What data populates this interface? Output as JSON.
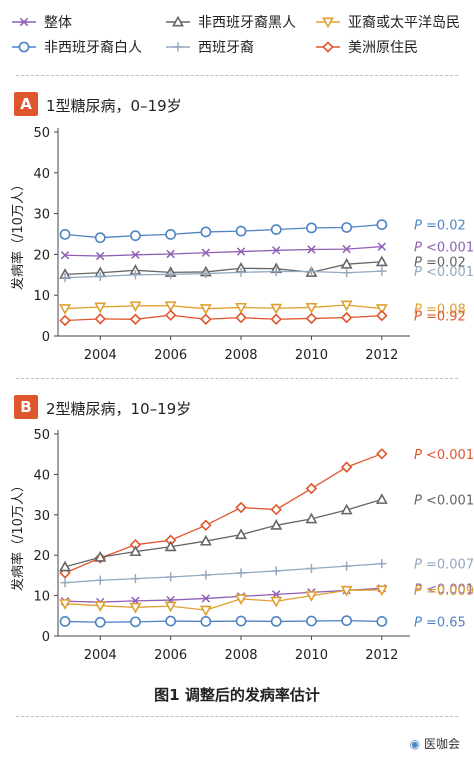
{
  "colors": {
    "overall": "#8e5fb5",
    "nh_white": "#4f84c4",
    "nh_black": "#666666",
    "hispanic": "#93a9c0",
    "asian_pi": "#e0a030",
    "native_american": "#e0562c"
  },
  "legend": [
    {
      "key": "overall",
      "label": "整体",
      "marker": "x"
    },
    {
      "key": "nh_black",
      "label": "非西班牙裔黑人",
      "marker": "triangle-up"
    },
    {
      "key": "asian_pi",
      "label": "亚裔或太平洋岛民",
      "marker": "triangle-down"
    },
    {
      "key": "nh_white",
      "label": "非西班牙裔白人",
      "marker": "circle"
    },
    {
      "key": "hispanic",
      "label": "西班牙裔",
      "marker": "plus"
    },
    {
      "key": "native_american",
      "label": "美洲原住民",
      "marker": "diamond"
    }
  ],
  "caption": "图1 调整后的发病率估计",
  "footer": "医咖会",
  "chart_data": [
    {
      "type": "line",
      "panel": "A",
      "title": "1型糖尿病，0–19岁",
      "ylabel": "发病率（/10万人）",
      "xlabel": "",
      "xlim": [
        2002.8,
        2012.8
      ],
      "ylim": [
        0,
        50
      ],
      "xticks": [
        2004,
        2006,
        2008,
        2010,
        2012
      ],
      "yticks": [
        0,
        10,
        20,
        30,
        40,
        50
      ],
      "x": [
        2003,
        2004,
        2005,
        2006,
        2007,
        2008,
        2009,
        2010,
        2011,
        2012
      ],
      "series": [
        {
          "key": "nh_white",
          "values": [
            24.9,
            24.1,
            24.6,
            24.9,
            25.5,
            25.7,
            26.1,
            26.5,
            26.6,
            27.3
          ],
          "p_value": "P =0.02"
        },
        {
          "key": "overall",
          "values": [
            19.8,
            19.6,
            19.9,
            20.1,
            20.4,
            20.7,
            21.0,
            21.2,
            21.3,
            21.9
          ],
          "p_value": "P <0.001"
        },
        {
          "key": "nh_black",
          "values": [
            15.1,
            15.5,
            16.1,
            15.6,
            15.7,
            16.6,
            16.5,
            15.6,
            17.6,
            18.2
          ],
          "p_value": "P =0.02"
        },
        {
          "key": "hispanic",
          "values": [
            14.3,
            14.6,
            15.0,
            15.1,
            15.3,
            15.6,
            15.8,
            15.8,
            15.5,
            15.9
          ],
          "p_value": "P <0.001"
        },
        {
          "key": "asian_pi",
          "values": [
            6.7,
            7.1,
            7.4,
            7.4,
            6.7,
            7.0,
            6.8,
            7.0,
            7.6,
            6.7
          ],
          "p_value": "P =0.08"
        },
        {
          "key": "native_american",
          "values": [
            3.8,
            4.2,
            4.1,
            5.1,
            4.1,
            4.5,
            4.1,
            4.3,
            4.5,
            5.0
          ],
          "p_value": "P =0.92"
        }
      ]
    },
    {
      "type": "line",
      "panel": "B",
      "title": "2型糖尿病，10–19岁",
      "ylabel": "发病率（/10万人）",
      "xlabel": "",
      "xlim": [
        2002.8,
        2012.8
      ],
      "ylim": [
        0,
        50
      ],
      "xticks": [
        2004,
        2006,
        2008,
        2010,
        2012
      ],
      "yticks": [
        0,
        10,
        20,
        30,
        40,
        50
      ],
      "x": [
        2003,
        2004,
        2005,
        2006,
        2007,
        2008,
        2009,
        2010,
        2011,
        2012
      ],
      "series": [
        {
          "key": "native_american",
          "values": [
            15.6,
            19.3,
            22.6,
            23.7,
            27.4,
            31.8,
            31.3,
            36.5,
            41.8,
            45.1
          ],
          "p_value": "P <0.001"
        },
        {
          "key": "nh_black",
          "values": [
            17.1,
            19.5,
            20.9,
            22.1,
            23.5,
            25.1,
            27.4,
            29.0,
            31.2,
            33.8
          ],
          "p_value": "P <0.001"
        },
        {
          "key": "hispanic",
          "values": [
            13.2,
            13.8,
            14.2,
            14.6,
            15.1,
            15.6,
            16.1,
            16.7,
            17.3,
            17.9
          ],
          "p_value": "P =0.007"
        },
        {
          "key": "overall",
          "values": [
            8.6,
            8.4,
            8.7,
            8.9,
            9.3,
            9.8,
            10.3,
            10.8,
            11.3,
            11.8
          ],
          "p_value": "P <0.001"
        },
        {
          "key": "asian_pi",
          "values": [
            8.0,
            7.5,
            7.1,
            7.4,
            6.4,
            9.2,
            8.6,
            10.0,
            11.3,
            11.4
          ],
          "p_value": "P =0.009"
        },
        {
          "key": "nh_white",
          "values": [
            3.6,
            3.4,
            3.5,
            3.7,
            3.6,
            3.7,
            3.6,
            3.7,
            3.8,
            3.6
          ],
          "p_value": "P =0.65"
        }
      ]
    }
  ]
}
